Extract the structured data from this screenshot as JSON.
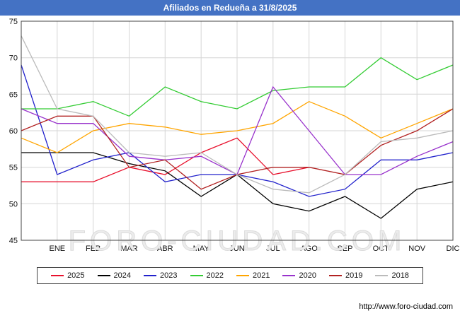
{
  "chart_data": {
    "type": "line",
    "title": "Afiliados en Redueña a 31/8/2025",
    "watermark": "FORO-CIUDAD.COM",
    "months": [
      "ENE",
      "FEB",
      "MAR",
      "ABR",
      "MAY",
      "JUN",
      "JUL",
      "AGO",
      "SEP",
      "OCT",
      "NOV",
      "DIC"
    ],
    "ylim": [
      45,
      75
    ],
    "yticks": [
      45,
      50,
      55,
      60,
      65,
      70,
      75
    ],
    "grid": true,
    "legend_position": "bottom",
    "note": "Each series has a starting value plotted on the left axis before ENE; 2025 data ends in AGO (data to 31/8/2025).",
    "series": [
      {
        "name": "2025",
        "color": "#e8112d",
        "values": [
          53,
          53,
          53,
          55,
          54,
          57,
          59,
          54,
          55
        ]
      },
      {
        "name": "2024",
        "color": "#000000",
        "values": [
          57,
          57,
          57,
          55.5,
          54.5,
          51,
          54,
          50,
          49,
          51,
          48,
          52,
          53
        ]
      },
      {
        "name": "2023",
        "color": "#2222cc",
        "values": [
          69,
          54,
          56,
          57,
          53,
          54,
          54,
          53,
          51,
          52,
          56,
          56,
          57
        ]
      },
      {
        "name": "2022",
        "color": "#33cc33",
        "values": [
          63,
          63,
          64,
          62,
          66,
          64,
          63,
          65.5,
          66,
          66,
          70,
          67,
          69
        ]
      },
      {
        "name": "2021",
        "color": "#ffa500",
        "values": [
          59,
          57,
          60,
          61,
          60.5,
          59.5,
          60,
          61,
          64,
          62,
          59,
          61,
          63
        ]
      },
      {
        "name": "2020",
        "color": "#9933cc",
        "values": [
          63,
          61,
          61,
          56.5,
          56,
          56.5,
          54,
          66,
          60,
          54,
          54,
          56.5,
          58.5
        ]
      },
      {
        "name": "2019",
        "color": "#b22222",
        "values": [
          60,
          62,
          62,
          55,
          56,
          52,
          54,
          55,
          55,
          54,
          58,
          60,
          63
        ]
      },
      {
        "name": "2018",
        "color": "#bbbbbb",
        "values": [
          73,
          63,
          62,
          57,
          56.5,
          57,
          54,
          52,
          51.5,
          54,
          58.5,
          59,
          60
        ]
      }
    ]
  },
  "footer": {
    "url": "http://www.foro-ciudad.com"
  }
}
